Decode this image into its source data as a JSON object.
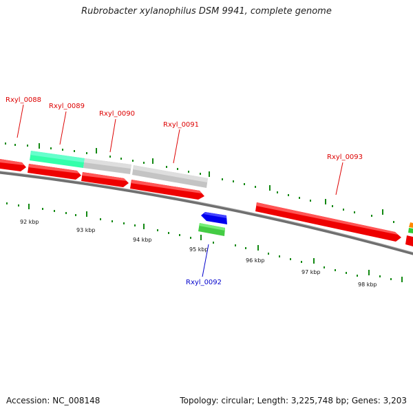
{
  "title": "Rubrobacter xylanophilus DSM 9941, complete genome",
  "accession_label": "Accession: NC_008148",
  "summary_label": "Topology: circular; Length: 3,225,748 bp; Genes: 3,203",
  "colors": {
    "forward_cds": "#ff0000",
    "reverse_cds": "#ff0000",
    "other_feature": "#c8c8c8",
    "rrna_feature": "#33ffaa",
    "small_reverse_gene": "#0000ff",
    "small_forward_gene": "#44cc44",
    "label_red": "#dd0000",
    "label_blue": "#0000cc",
    "tick_green": "#118811",
    "backbone": "#777777"
  },
  "scale_ticks": [
    "92 kbp",
    "93 kbp",
    "94 kbp",
    "95 kbp",
    "96 kbp",
    "97 kbp",
    "98 kbp"
  ],
  "gene_labels": [
    {
      "name": "Rxyl_0088",
      "color": "red"
    },
    {
      "name": "Rxyl_0089",
      "color": "red"
    },
    {
      "name": "Rxyl_0090",
      "color": "red"
    },
    {
      "name": "Rxyl_0091",
      "color": "red"
    },
    {
      "name": "Rxyl_0093",
      "color": "red"
    },
    {
      "name": "Rxyl_0092",
      "color": "blue"
    }
  ]
}
